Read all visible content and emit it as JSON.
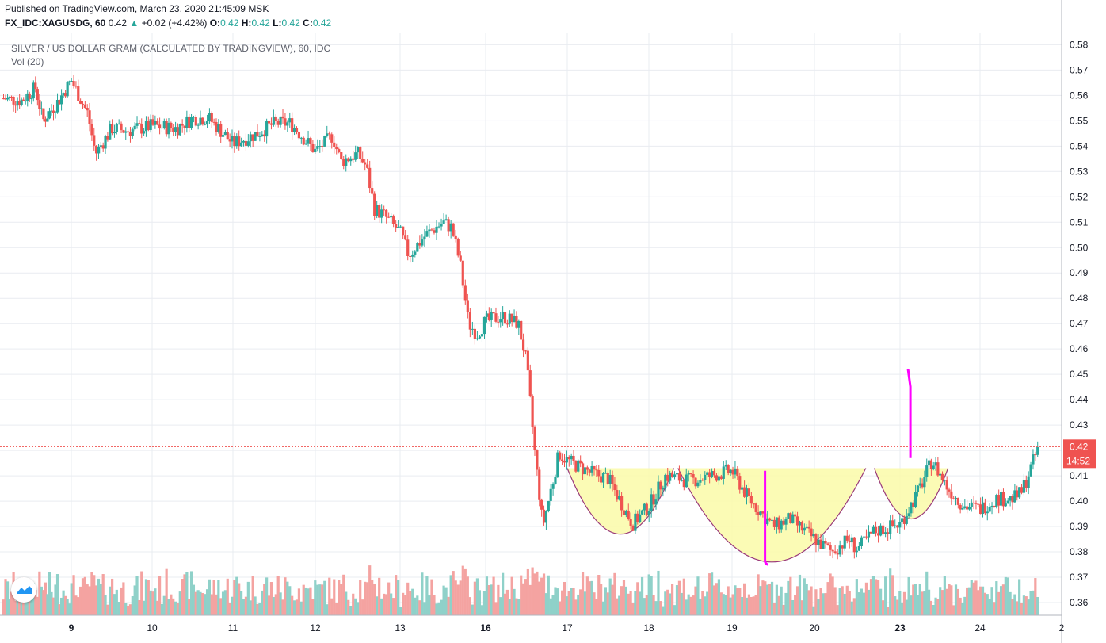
{
  "header": {
    "published": "Published on TradingView.com, March 23, 2020 21:45:09 MSK",
    "symbol": "FX_IDC:XAGUSDG, 60",
    "last": "0.42",
    "change": "+0.02 (+4.42%)",
    "o_label": "O:",
    "o_value": "0.42",
    "h_label": "H:",
    "h_value": "0.42",
    "l_label": "L:",
    "l_value": "0.42",
    "c_label": "C:",
    "c_value": "0.42"
  },
  "legend": {
    "title": "SILVER / US DOLLAR GRAM (CALCULATED BY TRADINGVIEW), 60, IDC",
    "volume": "Vol (20)"
  },
  "colors": {
    "up": "#26a69a",
    "down": "#ef5350",
    "vol_up": "#8fd1c9",
    "vol_down": "#f4a3a1",
    "grid": "#e9ecf1",
    "fill": "#fafaa8",
    "curve": "#9a3a7a",
    "marker": "#ff00ff",
    "price_tag": "#ef5350"
  },
  "chart_data": {
    "type": "candlestick",
    "title": "SILVER / US DOLLAR GRAM (CALCULATED BY TRADINGVIEW), 60, IDC",
    "interval": "60",
    "x_ticks": [
      "9",
      "10",
      "11",
      "12",
      "13",
      "16",
      "17",
      "18",
      "19",
      "20",
      "23",
      "24",
      "2"
    ],
    "y_ticks": [
      "0.58",
      "0.57",
      "0.56",
      "0.55",
      "0.54",
      "0.53",
      "0.52",
      "0.51",
      "0.50",
      "0.49",
      "0.48",
      "0.47",
      "0.46",
      "0.45",
      "0.44",
      "0.43",
      "0.42",
      "0.41",
      "0.40",
      "0.39",
      "0.38",
      "0.37",
      "0.36"
    ],
    "ylim": [
      0.355,
      0.5845
    ],
    "last_price": "0.42",
    "countdown": "14:52",
    "close_path": [
      [
        "8",
        0.559
      ],
      [
        "8.3",
        0.558
      ],
      [
        "8.5",
        0.563
      ],
      [
        "8.6",
        0.55
      ],
      [
        "8.8",
        0.557
      ],
      [
        "9",
        0.566
      ],
      [
        "9.2",
        0.553
      ],
      [
        "9.3",
        0.537
      ],
      [
        "9.5",
        0.547
      ],
      [
        "9.7",
        0.546
      ],
      [
        "10",
        0.548
      ],
      [
        "10.3",
        0.547
      ],
      [
        "10.5",
        0.551
      ],
      [
        "10.7",
        0.551
      ],
      [
        "11",
        0.541
      ],
      [
        "11.3",
        0.545
      ],
      [
        "11.5",
        0.549
      ],
      [
        "11.7",
        0.549
      ],
      [
        "12",
        0.538
      ],
      [
        "12.2",
        0.544
      ],
      [
        "12.3",
        0.534
      ],
      [
        "12.5",
        0.537
      ],
      [
        "12.6",
        0.532
      ],
      [
        "12.7",
        0.515
      ],
      [
        "12.8",
        0.513
      ],
      [
        "13",
        0.506
      ],
      [
        "13.1",
        0.497
      ],
      [
        "13.3",
        0.505
      ],
      [
        "13.5",
        0.51
      ],
      [
        "13.6",
        0.508
      ],
      [
        "13.7",
        0.494
      ],
      [
        "13.8",
        0.47
      ],
      [
        "13.9",
        0.466
      ],
      [
        "14",
        0.471
      ],
      [
        "14.2",
        0.473
      ],
      [
        "14.4",
        0.47
      ],
      [
        "14.5",
        0.455
      ],
      [
        "14.6",
        0.42
      ],
      [
        "14.7",
        0.39
      ],
      [
        "14.9",
        0.419
      ],
      [
        "15",
        0.416
      ],
      [
        "15.3",
        0.411
      ],
      [
        "15.5",
        0.409
      ],
      [
        "15.8",
        0.391
      ],
      [
        "16",
        0.398
      ],
      [
        "16.2",
        0.41
      ],
      [
        "16.5",
        0.408
      ],
      [
        "17",
        0.412
      ],
      [
        "17.2",
        0.401
      ],
      [
        "17.5",
        0.39
      ],
      [
        "17.7",
        0.393
      ],
      [
        "18",
        0.385
      ],
      [
        "18.2",
        0.38
      ],
      [
        "18.4",
        0.385
      ],
      [
        "18.5",
        0.381
      ],
      [
        "18.7",
        0.388
      ],
      [
        "19",
        0.391
      ],
      [
        "19.2",
        0.402
      ],
      [
        "19.4",
        0.416
      ],
      [
        "19.6",
        0.405
      ],
      [
        "19.8",
        0.398
      ],
      [
        "20",
        0.397
      ],
      [
        "20.2",
        0.401
      ],
      [
        "20.4",
        0.401
      ],
      [
        "20.5",
        0.403
      ],
      [
        "20.6",
        0.411
      ],
      [
        "20.7",
        0.42
      ]
    ],
    "volume": "Vol (20)",
    "annotations": {
      "cup_and_handle": true,
      "target_marker_top": 0.452,
      "target_marker_bottom": 0.417,
      "depth_marker_top": 0.412,
      "depth_marker_bottom": 0.375
    }
  }
}
